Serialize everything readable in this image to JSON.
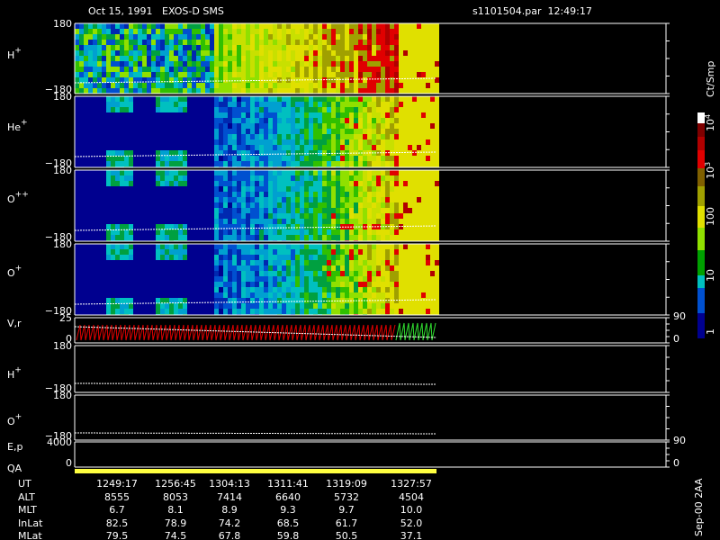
{
  "header": {
    "title": "Oct 15, 1991   EXOS-D SMS",
    "file": "s1101504.par  12:49:17"
  },
  "panels": [
    {
      "label": "H",
      "sup": "+",
      "top": "180",
      "bottom": "−180"
    },
    {
      "label": "He",
      "sup": "+",
      "top": "180",
      "bottom": "−180"
    },
    {
      "label": "O",
      "sup": "++",
      "top": "180",
      "bottom": "−180"
    },
    {
      "label": "O",
      "sup": "+",
      "top": "180",
      "bottom": "−180"
    },
    {
      "label": "V,r",
      "top": "25",
      "bottom": "0",
      "right_top": "90",
      "right_bottom": "0"
    },
    {
      "label": "H",
      "sup": "+",
      "top": "180",
      "bottom": "−180"
    },
    {
      "label": "O",
      "sup": "+",
      "top": "180",
      "bottom": "−180"
    },
    {
      "label": "E,p",
      "top": "4000",
      "bottom": "0",
      "right_top": "90",
      "right_bottom": "0"
    }
  ],
  "qa_label": "QA",
  "colorbar": {
    "unit": "Ct/Smp",
    "labels": [
      {
        "base": "10",
        "sup": "4"
      },
      {
        "base": "10",
        "sup": "3"
      },
      {
        "base": "100"
      },
      {
        "base": "10"
      },
      {
        "base": "1"
      }
    ]
  },
  "footer": {
    "rows": [
      {
        "name": "UT",
        "values": [
          "1249:17",
          "1256:45",
          "1304:13",
          "1311:41",
          "1319:09",
          "1327:57"
        ]
      },
      {
        "name": "ALT",
        "values": [
          "8555",
          "8053",
          "7414",
          "6640",
          "5732",
          "4504"
        ]
      },
      {
        "name": "MLT",
        "values": [
          "6.7",
          "8.1",
          "8.9",
          "9.3",
          "9.7",
          "10.0"
        ]
      },
      {
        "name": "InLat",
        "values": [
          "82.5",
          "78.9",
          "74.2",
          "68.5",
          "61.7",
          "52.0"
        ]
      },
      {
        "name": "MLat",
        "values": [
          "79.5",
          "74.5",
          "67.8",
          "59.8",
          "50.5",
          "37.1"
        ]
      }
    ]
  },
  "version": "Sep-00 2AA"
}
